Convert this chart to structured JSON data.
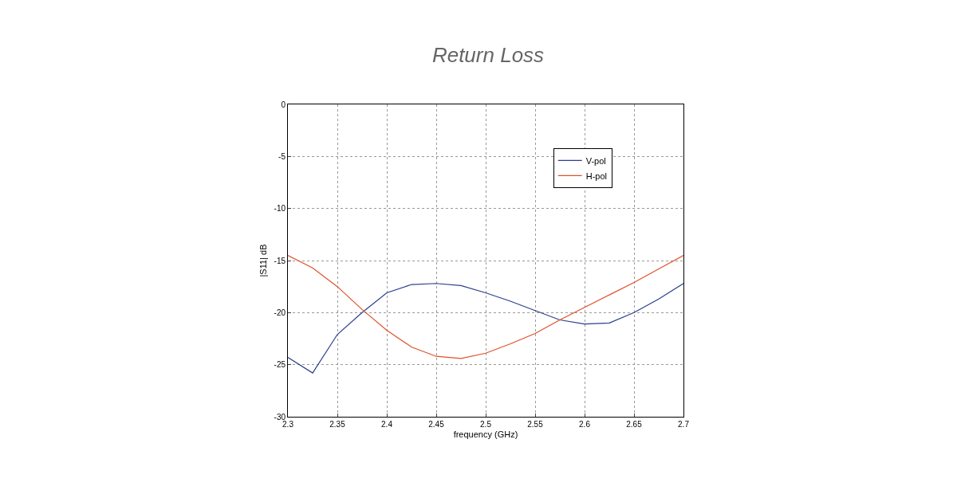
{
  "chart_data": {
    "type": "line",
    "title": "Return Loss",
    "xlabel": "frequency (GHz)",
    "ylabel": "|S11| dB",
    "x": [
      2.3,
      2.325,
      2.35,
      2.375,
      2.4,
      2.425,
      2.45,
      2.475,
      2.5,
      2.525,
      2.55,
      2.575,
      2.6,
      2.625,
      2.65,
      2.675,
      2.7
    ],
    "series": [
      {
        "name": "V-pol",
        "color": "#2b3f8c",
        "values": [
          -24.3,
          -25.8,
          -22.1,
          -20.0,
          -18.1,
          -17.3,
          -17.2,
          -17.4,
          -18.1,
          -18.9,
          -19.8,
          -20.7,
          -21.1,
          -21.0,
          -20.0,
          -18.7,
          -17.2
        ]
      },
      {
        "name": "H-pol",
        "color": "#e0502a",
        "values": [
          -14.5,
          -15.7,
          -17.5,
          -19.7,
          -21.7,
          -23.3,
          -24.2,
          -24.4,
          -23.9,
          -23.0,
          -22.0,
          -20.7,
          -19.5,
          -18.3,
          -17.1,
          -15.8,
          -14.5
        ]
      }
    ],
    "xlim": [
      2.3,
      2.7
    ],
    "xticks": [
      2.3,
      2.35,
      2.4,
      2.45,
      2.5,
      2.55,
      2.6,
      2.65,
      2.7
    ],
    "ylim": [
      -30,
      0
    ],
    "yticks": [
      -30,
      -25,
      -20,
      -15,
      -10,
      -5,
      0
    ],
    "grid": true,
    "legend": "top right",
    "marker": "none",
    "line_style": "solid"
  }
}
